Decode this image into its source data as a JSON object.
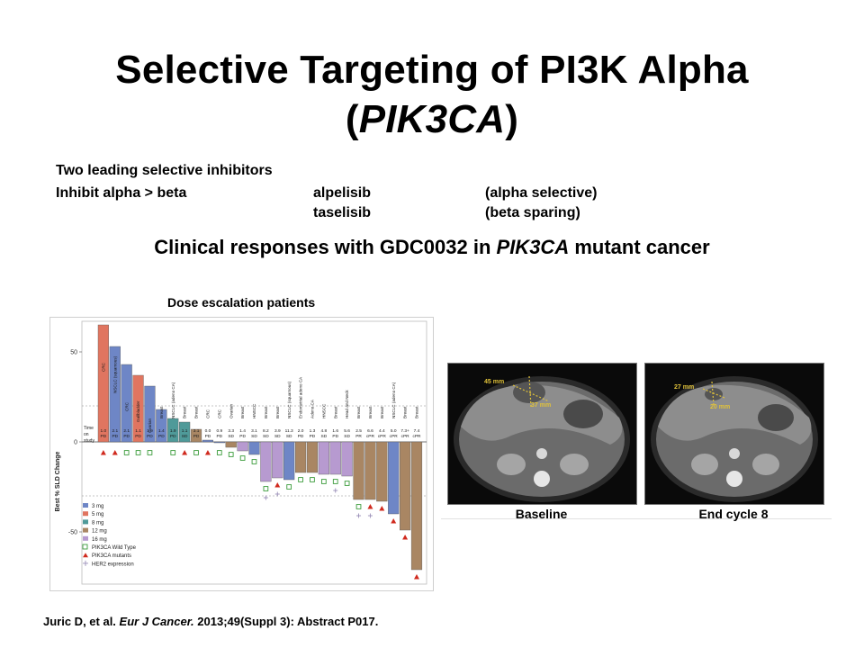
{
  "slide": {
    "title_line1": "Selective Targeting of PI3K Alpha",
    "title_paren_open": "(",
    "title_gene": "PIK3CA",
    "title_paren_close": ")",
    "bullets": {
      "line1": "Two leading selective inhibitors",
      "line2": "Inhibit alpha > beta",
      "drug1": "alpelisib",
      "drug1_note": "(alpha selective)",
      "drug2": "taselisib",
      "drug2_note": "(beta sparing)"
    },
    "subtitle_pre": "Clinical responses with GDC0032 in ",
    "subtitle_gene": "PIK3CA",
    "subtitle_post": " mutant cancer",
    "chart_title": "Dose escalation patients",
    "scan_labels": {
      "baseline": "Baseline",
      "end": "End cycle 8"
    },
    "scan_measurements": {
      "baseline_a": "45 mm",
      "baseline_b": "37 mm",
      "end_a": "27 mm",
      "end_b": "20 mm"
    },
    "citation_pre": "Juric D, et al. ",
    "citation_journal": "Eur J Cancer.",
    "citation_post": " 2013;49(Suppl 3): Abstract P017."
  },
  "chart_data": {
    "type": "bar",
    "title": "",
    "ylabel": "Best % SLD Change",
    "ylim": [
      -80,
      70
    ],
    "yticks": [
      50,
      0,
      -50
    ],
    "reference_lines": [
      20,
      -30
    ],
    "grid": false,
    "legend_position": "bottom-left",
    "time_on_study_label": [
      "Time",
      "on",
      "study"
    ],
    "dose_colors": {
      "3 mg": "#6e86c6",
      "5 mg": "#e07560",
      "8 mg": "#4f9a99",
      "12 mg": "#a98663",
      "16 mg": "#b79ad0"
    },
    "legend": [
      {
        "label": "3 mg",
        "kind": "dose",
        "color": "#6e86c6"
      },
      {
        "label": "5 mg",
        "kind": "dose",
        "color": "#e07560"
      },
      {
        "label": "8 mg",
        "kind": "dose",
        "color": "#4f9a99"
      },
      {
        "label": "12 mg",
        "kind": "dose",
        "color": "#a98663"
      },
      {
        "label": "16 mg",
        "kind": "dose",
        "color": "#b79ad0"
      },
      {
        "label": "PIK3CA Wild Type",
        "kind": "square",
        "color": "#3a9b3a"
      },
      {
        "label": "PIK3CA mutants",
        "kind": "triangle",
        "color": "#d02a1e"
      },
      {
        "label": "HER2 expression",
        "kind": "plus",
        "color": "#9a8fb8"
      }
    ],
    "patients": [
      {
        "tumor": "CRC",
        "value": 65,
        "dose": "5 mg",
        "time": "1.0",
        "response": "PD",
        "pik3ca": "mutant",
        "her2": false
      },
      {
        "tumor": "NSCLC (squamous)",
        "value": 53,
        "dose": "3 mg",
        "time": "2.1",
        "response": "PD",
        "pik3ca": "mutant",
        "her2": false
      },
      {
        "tumor": "CRC",
        "value": 43,
        "dose": "3 mg",
        "time": "2.1",
        "response": "PD",
        "pik3ca": "wild",
        "her2": false
      },
      {
        "tumor": "Gallbladder",
        "value": 37,
        "dose": "5 mg",
        "time": "1.1",
        "response": "PD",
        "pik3ca": "wild",
        "her2": false
      },
      {
        "tumor": "Ovarian",
        "value": 31,
        "dose": "3 mg",
        "time": "1.9",
        "response": "PD",
        "pik3ca": "wild",
        "her2": false
      },
      {
        "tumor": "Breast",
        "value": 18,
        "dose": "3 mg",
        "time": "1.4",
        "response": "PD",
        "pik3ca": "",
        "her2": false
      },
      {
        "tumor": "NSCLC (adeno CA)",
        "value": 13,
        "dose": "8 mg",
        "time": "1.9",
        "response": "PD",
        "pik3ca": "wild",
        "her2": false
      },
      {
        "tumor": "Breast",
        "value": 11,
        "dose": "8 mg",
        "time": "1.1",
        "response": "SD",
        "pik3ca": "mutant",
        "her2": false
      },
      {
        "tumor": "Breast",
        "value": 7,
        "dose": "12 mg",
        "time": "3.1",
        "response": "PD",
        "pik3ca": "wild",
        "her2": false
      },
      {
        "tumor": "CRC",
        "value": 1,
        "dose": "3 mg",
        "time": "0.0",
        "response": "PD",
        "pik3ca": "mutant",
        "her2": false
      },
      {
        "tumor": "CRC",
        "value": 0,
        "dose": "3 mg",
        "time": "0.9",
        "response": "PD",
        "pik3ca": "wild",
        "her2": false
      },
      {
        "tumor": "Ovarian",
        "value": -3,
        "dose": "12 mg",
        "time": "3.3",
        "response": "SD",
        "pik3ca": "wild",
        "her2": false
      },
      {
        "tumor": "Breast",
        "value": -5,
        "dose": "16 mg",
        "time": "1.4",
        "response": "PD",
        "pik3ca": "wild",
        "her2": false
      },
      {
        "tumor": "HNSCC",
        "value": -7,
        "dose": "3 mg",
        "time": "3.1",
        "response": "SD",
        "pik3ca": "wild",
        "her2": false
      },
      {
        "tumor": "Breast",
        "value": -22,
        "dose": "16 mg",
        "time": "8.2",
        "response": "SD",
        "pik3ca": "wild",
        "her2": true
      },
      {
        "tumor": "Breast",
        "value": -20,
        "dose": "16 mg",
        "time": "3.9",
        "response": "SD",
        "pik3ca": "mutant",
        "her2": true
      },
      {
        "tumor": "NSCLC (squamous)",
        "value": -21,
        "dose": "3 mg",
        "time": "11.3",
        "response": "SD",
        "pik3ca": "wild",
        "her2": false
      },
      {
        "tumor": "Endometrial adeno CA",
        "value": -17,
        "dose": "12 mg",
        "time": "2.0",
        "response": "PD",
        "pik3ca": "wild",
        "her2": false
      },
      {
        "tumor": "Adeno CA",
        "value": -17,
        "dose": "12 mg",
        "time": "1.3",
        "response": "PD",
        "pik3ca": "wild",
        "her2": false
      },
      {
        "tumor": "HNSCC",
        "value": -18,
        "dose": "16 mg",
        "time": "4.8",
        "response": "SD",
        "pik3ca": "wild",
        "her2": false
      },
      {
        "tumor": "Breast",
        "value": -18,
        "dose": "16 mg",
        "time": "1.6",
        "response": "PD",
        "pik3ca": "wild",
        "her2": true
      },
      {
        "tumor": "Head and Neck",
        "value": -19,
        "dose": "16 mg",
        "time": "5.6",
        "response": "SD",
        "pik3ca": "wild",
        "her2": false
      },
      {
        "tumor": "Breast",
        "value": -32,
        "dose": "12 mg",
        "time": "2.5",
        "response": "PR",
        "pik3ca": "wild",
        "her2": true
      },
      {
        "tumor": "Breast",
        "value": -32,
        "dose": "12 mg",
        "time": "6.6",
        "response": "cPR",
        "pik3ca": "mutant",
        "her2": true
      },
      {
        "tumor": "Breast",
        "value": -33,
        "dose": "12 mg",
        "time": "4.4",
        "response": "cPR",
        "pik3ca": "mutant",
        "her2": false
      },
      {
        "tumor": "NSCLC (adeno CA)",
        "value": -40,
        "dose": "3 mg",
        "time": "5.0",
        "response": "cPR",
        "pik3ca": "mutant",
        "her2": false
      },
      {
        "tumor": "Breast",
        "value": -49,
        "dose": "12 mg",
        "time": "7.3+",
        "response": "cPR",
        "pik3ca": "mutant",
        "her2": false
      },
      {
        "tumor": "Breast",
        "value": -71,
        "dose": "12 mg",
        "time": "7.4",
        "response": "cPR",
        "pik3ca": "mutant",
        "her2": false
      }
    ]
  }
}
